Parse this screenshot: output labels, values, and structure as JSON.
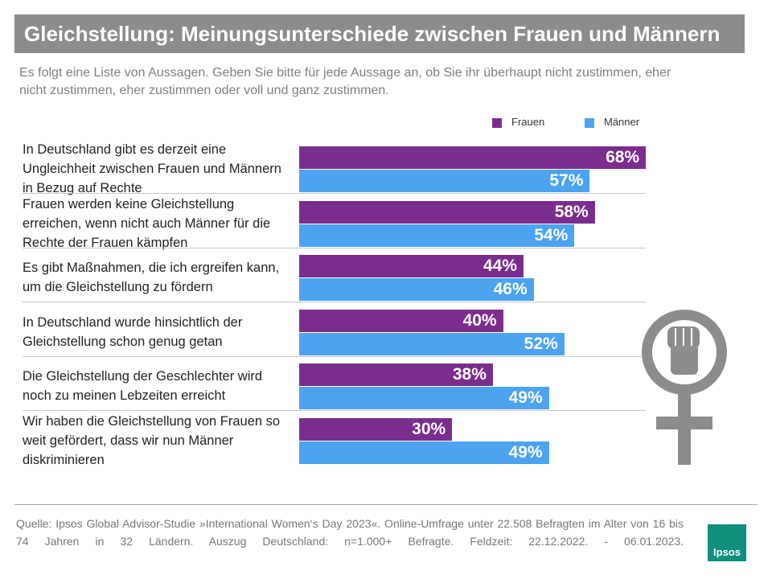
{
  "chart_data": {
    "type": "bar",
    "orientation": "horizontal",
    "title": "Gleichstellung: Meinungsunterschiede zwischen Frauen und Männern",
    "subtitle": "Es folgt eine Liste von Aussagen. Geben Sie bitte für jede Aussage an, ob Sie ihr überhaupt nicht zustimmen, eher nicht zustimmen, eher zustimmen oder voll und ganz zustimmen.",
    "categories": [
      "In Deutschland gibt es derzeit eine Ungleichheit zwischen Frauen und Männern in Bezug auf Rechte",
      "Frauen werden keine Gleichstellung erreichen, wenn nicht auch Männer für die Rechte der Frauen kämpfen",
      "Es gibt Maßnahmen, die ich ergreifen kann, um die Gleichstellung zu fördern",
      "In Deutschland wurde hinsichtlich der Gleichstellung schon genug getan",
      "Die Gleichstellung der Geschlechter wird noch zu meinen Lebzeiten erreicht",
      "Wir haben die Gleichstellung von Frauen so weit gefördert, dass wir nun Männer diskriminieren"
    ],
    "series": [
      {
        "name": "Frauen",
        "color": "#7b2d8e",
        "values": [
          68,
          58,
          44,
          40,
          38,
          30
        ],
        "value_labels": [
          "68%",
          "58%",
          "44%",
          "40%",
          "38%",
          "30%"
        ]
      },
      {
        "name": "Männer",
        "color": "#4ca3f0",
        "values": [
          57,
          54,
          46,
          52,
          49,
          49
        ],
        "value_labels": [
          "57%",
          "54%",
          "46%",
          "52%",
          "49%",
          "49%"
        ]
      }
    ],
    "source": "Quelle: Ipsos Global Advisor-Studie »International Women‘s Day 2023«. Online-Umfrage unter 22.508 Befragten im Alter von 16 bis 74 Jahren in 32 Ländern. Auszug Deutschland: n=1.000+ Befragte. Feldzeit: 22.12.2022. - 06.01.2023.",
    "logo": "Ipsos"
  }
}
